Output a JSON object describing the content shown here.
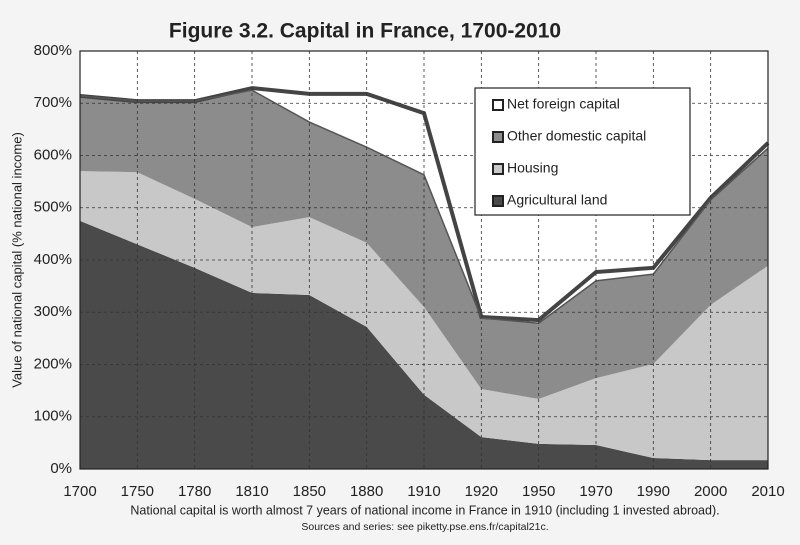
{
  "chart_data": {
    "type": "stacked_area",
    "title": "Figure 3.2. Capital in France, 1700-2010",
    "y_label": "Value of national capital (% national income)",
    "caption": "National capital is worth almost 7 years of national income in France in 1910 (including 1 invested abroad).",
    "source": "Sources and series: see piketty.pse.ens.fr/capital21c.",
    "categories": [
      "1700",
      "1750",
      "1780",
      "1810",
      "1850",
      "1880",
      "1910",
      "1920",
      "1950",
      "1970",
      "1990",
      "2000",
      "2010"
    ],
    "series": [
      {
        "name": "Agricultural land",
        "color": "#4a4a4a",
        "values": [
          475,
          430,
          385,
          337,
          333,
          272,
          142,
          61,
          48,
          46,
          21,
          17,
          17
        ]
      },
      {
        "name": "Housing",
        "color": "#c8c8c8",
        "values": [
          95,
          138,
          132,
          126,
          149,
          161,
          168,
          92,
          86,
          128,
          180,
          297,
          372
        ]
      },
      {
        "name": "Other domestic capital",
        "color": "#8c8c8c",
        "values": [
          144,
          136,
          187,
          262,
          182,
          183,
          253,
          136,
          145,
          186,
          172,
          201,
          225
        ]
      },
      {
        "name": "Net foreign capital",
        "color": "#ffffff",
        "values": [
          0,
          0,
          0,
          4,
          54,
          102,
          118,
          2,
          6,
          17,
          12,
          4,
          10
        ]
      }
    ],
    "ylim": [
      0,
      800
    ],
    "yticks": [
      {
        "value": 0,
        "label": "0%"
      },
      {
        "value": 100,
        "label": "100%"
      },
      {
        "value": 200,
        "label": "200%"
      },
      {
        "value": 300,
        "label": "300%"
      },
      {
        "value": 400,
        "label": "400%"
      },
      {
        "value": 500,
        "label": "500%"
      },
      {
        "value": 600,
        "label": "600%"
      },
      {
        "value": 700,
        "label": "700%"
      },
      {
        "value": 800,
        "label": "800%"
      }
    ],
    "grid": true
  }
}
